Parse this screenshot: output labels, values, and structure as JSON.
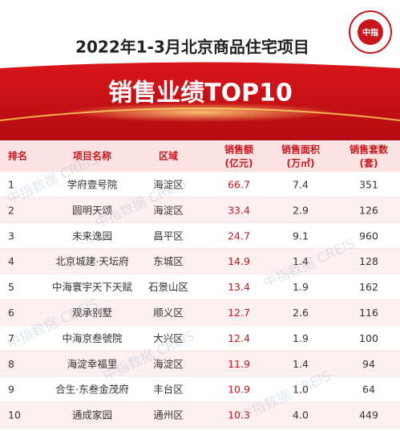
{
  "header": {
    "title": "2022年1-3月北京商品住宅项目",
    "banner": "销售业绩TOP10",
    "logo": "中指"
  },
  "watermark": "中指数据 CREIS",
  "table": {
    "columns": [
      {
        "label": "排名"
      },
      {
        "label": "项目名称"
      },
      {
        "label": "区域"
      },
      {
        "label": "销售额",
        "unit": "(亿元)"
      },
      {
        "label": "销售面积",
        "unit": "(万㎡)"
      },
      {
        "label": "销售套数",
        "unit": "(套)"
      }
    ],
    "rows": [
      [
        "1",
        "学府壹号院",
        "海淀区",
        "66.7",
        "7.4",
        "351"
      ],
      [
        "2",
        "圆明天颂",
        "海淀区",
        "33.4",
        "2.9",
        "126"
      ],
      [
        "3",
        "未来逸园",
        "昌平区",
        "24.7",
        "9.1",
        "960"
      ],
      [
        "4",
        "北京城建·天坛府",
        "东城区",
        "14.9",
        "1.4",
        "128"
      ],
      [
        "5",
        "中海寰宇天下天赋",
        "石景山区",
        "13.4",
        "1.9",
        "162"
      ],
      [
        "6",
        "观承别墅",
        "顺义区",
        "12.7",
        "2.6",
        "116"
      ],
      [
        "7",
        "中海京叁號院",
        "大兴区",
        "12.4",
        "1.9",
        "100"
      ],
      [
        "8",
        "海淀幸福里",
        "海淀区",
        "11.9",
        "1.4",
        "94"
      ],
      [
        "9",
        "合生·东叁金茂府",
        "丰台区",
        "10.9",
        "1.0",
        "64"
      ],
      [
        "10",
        "通成家园",
        "通州区",
        "10.3",
        "4.0",
        "449"
      ]
    ]
  }
}
